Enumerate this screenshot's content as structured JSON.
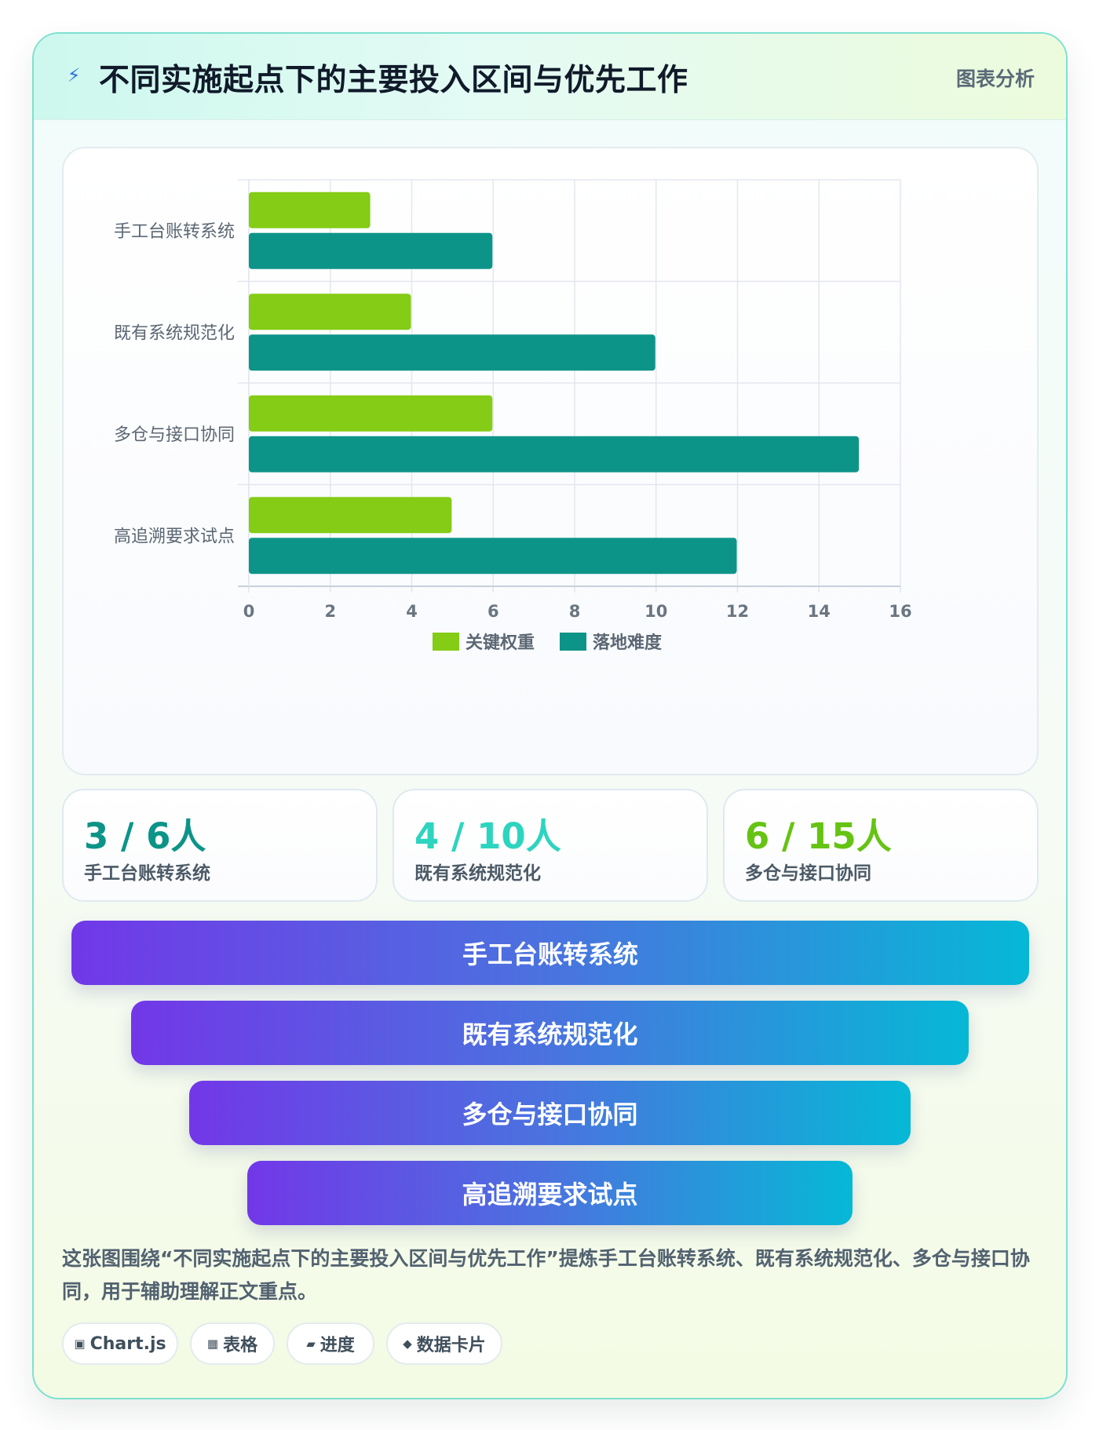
{
  "header": {
    "title": "不同实施起点下的主要投入区间与优先工作",
    "tag": "图表分析"
  },
  "chart_data": {
    "type": "bar",
    "orientation": "horizontal",
    "categories": [
      "手工台账转系统",
      "既有系统规范化",
      "多仓与接口协同",
      "高追溯要求试点"
    ],
    "series": [
      {
        "name": "关键权重",
        "color": "#84cc16",
        "values": [
          3,
          4,
          6,
          5
        ]
      },
      {
        "name": "落地难度",
        "color": "#0d9488",
        "values": [
          6,
          10,
          15,
          12
        ]
      }
    ],
    "xlim": [
      0,
      16
    ],
    "xticks": [
      "0",
      "2",
      "4",
      "6",
      "8",
      "10",
      "12",
      "14",
      "16"
    ],
    "grid": true,
    "legend_position": "bottom"
  },
  "stats": [
    {
      "value": "3 / 6人",
      "label": "手工台账转系统",
      "color": "#0d9488"
    },
    {
      "value": "4 / 10人",
      "label": "既有系统规范化",
      "color": "#2dd4bf"
    },
    {
      "value": "6 / 15人",
      "label": "多仓与接口协同",
      "color": "#65c313"
    }
  ],
  "funnel": [
    "手工台账转系统",
    "既有系统规范化",
    "多仓与接口协同",
    "高追溯要求试点"
  ],
  "description": "这张图围绕“不同实施起点下的主要投入区间与优先工作”提炼手工台账转系统、既有系统规范化、多仓与接口协同，用于辅助理解正文重点。",
  "chips": [
    {
      "icon": "▣",
      "label": "Chart.js"
    },
    {
      "icon": "▦",
      "label": "表格"
    },
    {
      "icon": "▰",
      "label": "进度"
    },
    {
      "icon": "◆",
      "label": "数据卡片"
    }
  ]
}
